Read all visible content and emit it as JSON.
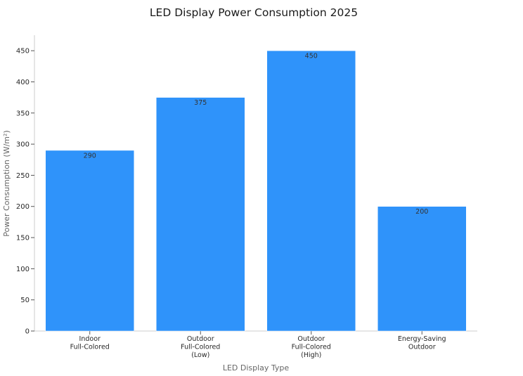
{
  "chart_data": {
    "type": "bar",
    "title": "LED Display Power Consumption 2025",
    "xlabel": "LED Display Type",
    "ylabel": "Power Consumption (W/m²)",
    "categories": [
      [
        "Indoor",
        "Full-Colored"
      ],
      [
        "Outdoor",
        "Full-Colored",
        "(Low)"
      ],
      [
        "Outdoor",
        "Full-Colored",
        "(High)"
      ],
      [
        "Energy-Saving",
        "Outdoor"
      ]
    ],
    "values": [
      290,
      375,
      450,
      200
    ],
    "data_labels": [
      "290",
      "375",
      "450",
      "200"
    ],
    "ylim": [
      0,
      475
    ],
    "yticks": [
      0,
      50,
      100,
      150,
      200,
      250,
      300,
      350,
      400,
      450
    ],
    "grid": false,
    "legend": "none",
    "bar_color": "#2f93fa"
  }
}
